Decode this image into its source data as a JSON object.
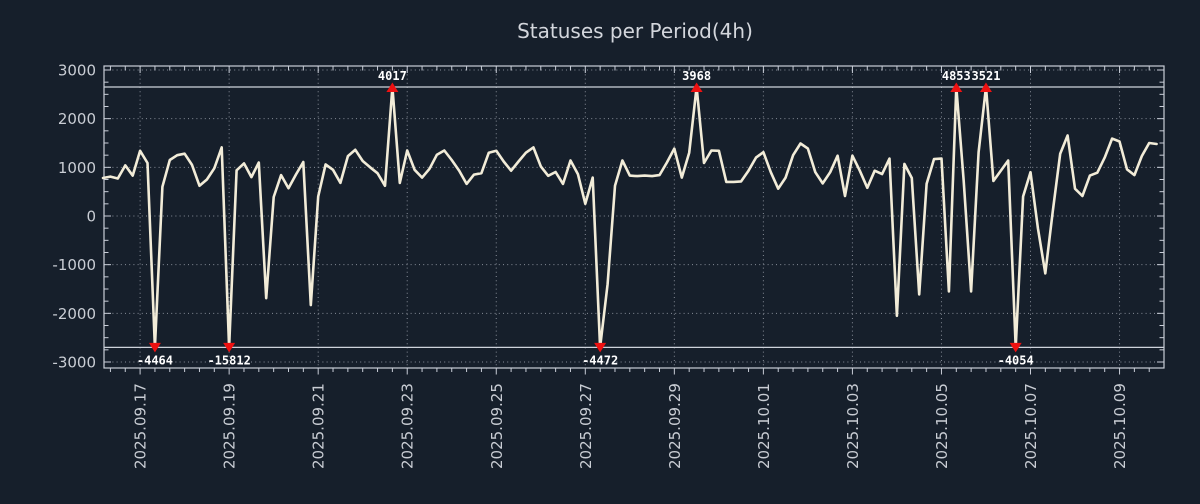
{
  "title": "Statuses per Period(4h)",
  "chart_data": {
    "type": "line",
    "title": "Statuses per Period(4h)",
    "period": "4h",
    "xlabel": "",
    "ylabel": "",
    "legend": "none",
    "grid": "dotted",
    "ylim": [
      -3000,
      3000
    ],
    "y_ticks": [
      3000,
      2000,
      1000,
      0,
      -1000,
      -2000,
      -3000
    ],
    "y_minor_tick_step": 250,
    "x_tick_labels": [
      "2025.09.17",
      "2025.09.19",
      "2025.09.21",
      "2025.09.23",
      "2025.09.25",
      "2025.09.27",
      "2025.09.29",
      "2025.10.01",
      "2025.10.03",
      "2025.10.05",
      "2025.10.07",
      "2025.10.09"
    ],
    "points_per_x_tick_interval": 12,
    "first_x_tick_at_point_index": 5,
    "clip_max": 2650,
    "clip_min": -2700,
    "values": [
      780,
      810,
      770,
      1040,
      830,
      1340,
      1090,
      -4464,
      600,
      1150,
      1250,
      1280,
      1050,
      620,
      750,
      980,
      1410,
      -15812,
      940,
      1080,
      800,
      1100,
      -1690,
      390,
      840,
      570,
      850,
      1110,
      -1830,
      400,
      1060,
      950,
      680,
      1230,
      1360,
      1130,
      1000,
      880,
      620,
      4017,
      680,
      1345,
      950,
      790,
      970,
      1260,
      1345,
      1150,
      930,
      660,
      850,
      880,
      1300,
      1340,
      1120,
      930,
      1120,
      1300,
      1410,
      1020,
      825,
      905,
      660,
      1140,
      860,
      250,
      790,
      -4472,
      -1400,
      620,
      1140,
      830,
      820,
      830,
      820,
      840,
      1100,
      1385,
      790,
      1300,
      3968,
      1090,
      1345,
      1340,
      700,
      700,
      710,
      930,
      1200,
      1310,
      900,
      560,
      790,
      1250,
      1490,
      1385,
      900,
      670,
      900,
      1240,
      410,
      1240,
      930,
      580,
      930,
      860,
      1180,
      -2050,
      1070,
      780,
      -1610,
      660,
      1170,
      1180,
      -1550,
      4853,
      720,
      -1550,
      1310,
      3521,
      720,
      930,
      1140,
      -4054,
      400,
      900,
      -250,
      -1180,
      100,
      1280,
      1655,
      560,
      410,
      830,
      890,
      1200,
      1590,
      1530,
      960,
      840,
      1230,
      1500,
      1480
    ],
    "peak_markers": [
      {
        "label": "4017",
        "index": 39
      },
      {
        "label": "3968",
        "index": 80
      },
      {
        "label": "4853",
        "index": 115
      },
      {
        "label": "3521",
        "index": 119
      }
    ],
    "trough_markers": [
      {
        "label": "-4464",
        "index": 7
      },
      {
        "label": "-15812",
        "index": 17
      },
      {
        "label": "-4472",
        "index": 67
      },
      {
        "label": "-4054",
        "index": 123
      }
    ],
    "colors": {
      "background": "#161f2b",
      "line": "#f2ecd8",
      "marker": "#ee1111",
      "marker_text": "#ffffff",
      "grid": "#878d98",
      "frame": "#c9ced8",
      "clip_line": "#ced3db",
      "tick_text": "#c9cdd4",
      "title_text": "#d3d6dc"
    }
  }
}
